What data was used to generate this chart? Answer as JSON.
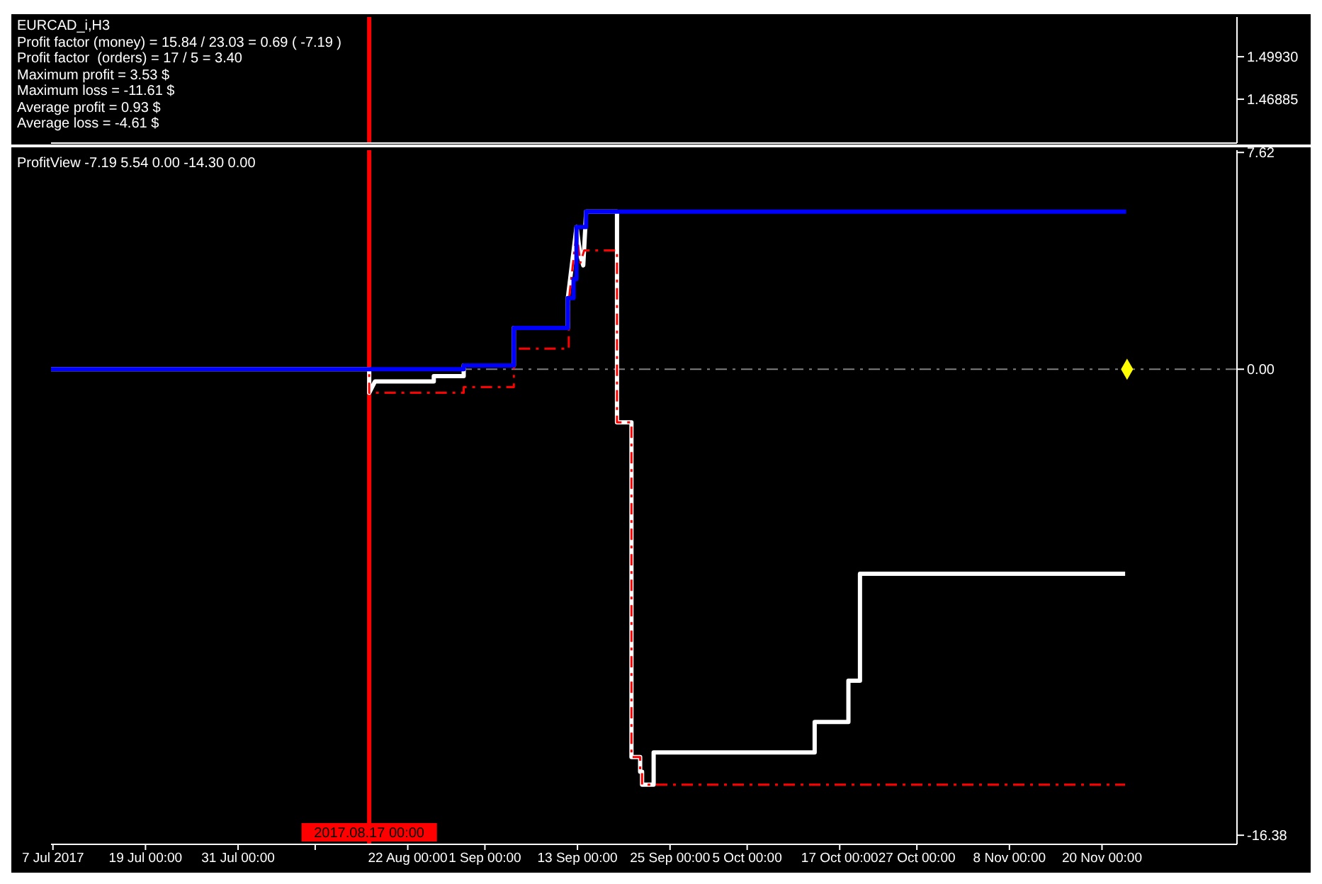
{
  "chart_data": [
    {
      "type": "line",
      "title": "EURCAD_i,H3",
      "annotations": [
        "Profit factor (money) = 15.84 / 23.03 = 0.69 ( -7.19 )",
        "Profit factor  (orders) = 17 / 5 = 3.40",
        "Maximum profit = 3.53 $",
        "Maximum loss = -11.61 $",
        "Average profit = 0.93 $",
        "Average loss = -4.61 $"
      ],
      "xlim": [
        "2017-07-06T18:00",
        "2017-12-07T12:00"
      ],
      "ylim": [
        1.4374,
        1.5278
      ],
      "yticks": [
        {
          "value": 1.4993,
          "label": "1.49930"
        },
        {
          "value": 1.46885,
          "label": "1.46885"
        }
      ],
      "tick_labels": "y",
      "ref_lines": [
        {
          "axis": "x",
          "value": "2017-08-17T00:00",
          "color": "#ff0000"
        }
      ]
    },
    {
      "type": "line",
      "subtitle": "ProfitView -7.19 5.54 0.00 -14.30 0.00",
      "xlim": [
        "2017-07-06T18:00",
        "2017-12-07T12:00"
      ],
      "xticks": [
        {
          "value": "2017-07-07",
          "label": "7 Jul 2017"
        },
        {
          "value": "2017-07-19",
          "label": "19 Jul 00:00"
        },
        {
          "value": "2017-07-31",
          "label": "31 Jul 00:00"
        },
        {
          "value": "2017-08-10",
          "label": null
        },
        {
          "value": "2017-08-22",
          "label": "22 Aug 00:00"
        },
        {
          "value": "2017-09-01",
          "label": "1 Sep 00:00"
        },
        {
          "value": "2017-09-13",
          "label": "13 Sep 00:00"
        },
        {
          "value": "2017-09-25",
          "label": "25 Sep 00:00"
        },
        {
          "value": "2017-10-05",
          "label": "5 Oct 00:00"
        },
        {
          "value": "2017-10-17",
          "label": "17 Oct 00:00"
        },
        {
          "value": "2017-10-27",
          "label": "27 Oct 00:00"
        },
        {
          "value": "2017-11-08",
          "label": "8 Nov 00:00"
        },
        {
          "value": "2017-11-20",
          "label": "20 Nov 00:00"
        }
      ],
      "ylim": [
        -16.7,
        7.7
      ],
      "yticks": [
        {
          "value": 7.62,
          "label": "7.62"
        },
        {
          "value": 0,
          "label": "0.00"
        },
        {
          "value": -16.38,
          "label": "-16.38"
        }
      ],
      "marker": "none",
      "ref_lines": [
        {
          "axis": "y",
          "value": 0,
          "color": "#808080",
          "line_style": "dashed"
        },
        {
          "axis": "x",
          "value": "2017-08-17T00:00",
          "label": "2017.08.17 00:00",
          "color": "#ff0000"
        }
      ],
      "series": [
        {
          "color": "#ffffff",
          "line_style": "solid",
          "x": [
            "2017-07-06T18:00",
            "2017-08-17T00:00",
            "2017-08-17T00:00",
            "2017-08-17T18:00",
            "2017-08-25T09:00",
            "2017-08-25T09:00",
            "2017-08-29T06:00",
            "2017-08-29T06:00",
            "2017-09-04T18:00",
            "2017-09-04T18:00",
            "2017-09-11T18:00",
            "2017-09-11T18:00",
            "2017-09-12T21:00",
            "2017-09-13T09:00",
            "2017-09-13T18:00",
            "2017-09-14T03:00",
            "2017-09-18T03:00",
            "2017-09-18T03:00",
            "2017-09-20T00:00",
            "2017-09-20T00:00",
            "2017-09-21T03:00",
            "2017-09-21T03:00",
            "2017-09-21T09:00",
            "2017-09-21T09:00",
            "2017-09-22T21:00",
            "2017-09-22T21:00",
            "2017-10-13T18:00",
            "2017-10-13T18:00",
            "2017-10-18T03:00",
            "2017-10-18T03:00",
            "2017-10-19T15:00",
            "2017-10-19T15:00",
            "2017-11-23T00:00"
          ],
          "values": [
            0,
            0,
            -0.83,
            -0.43,
            -0.43,
            -0.24,
            -0.24,
            0.13,
            0.13,
            1.45,
            1.45,
            2.5,
            5.0,
            4.0,
            3.65,
            5.54,
            5.54,
            -1.87,
            -1.87,
            -13.63,
            -13.63,
            -14.15,
            -14.15,
            -14.6,
            -14.6,
            -13.47,
            -13.47,
            -12.4,
            -12.4,
            -10.95,
            -10.95,
            -7.19,
            -7.19
          ]
        },
        {
          "color": "#ff0000",
          "line_style": "dashed",
          "x": [
            "2017-07-06T18:00",
            "2017-08-17T00:00",
            "2017-08-17T00:00",
            "2017-08-29T06:00",
            "2017-08-29T06:00",
            "2017-09-04T18:00",
            "2017-09-04T18:00",
            "2017-09-11T21:00",
            "2017-09-11T21:00",
            "2017-09-12T21:00",
            "2017-09-13T09:00",
            "2017-09-13T21:00",
            "2017-09-18T03:00",
            "2017-09-18T03:00",
            "2017-09-20T00:00",
            "2017-09-20T00:00",
            "2017-09-21T03:00",
            "2017-09-21T03:00",
            "2017-09-21T09:00",
            "2017-09-21T09:00",
            "2017-11-23T00:00"
          ],
          "values": [
            0,
            0,
            -0.83,
            -0.83,
            -0.63,
            -0.63,
            0.72,
            0.72,
            2.4,
            4.8,
            3.74,
            4.18,
            4.18,
            -1.87,
            -1.87,
            -13.63,
            -13.63,
            -14.15,
            -14.15,
            -14.6,
            -14.6
          ]
        },
        {
          "color": "#0000ff",
          "line_style": "solid",
          "x": [
            "2017-07-06T18:00",
            "2017-08-29T06:00",
            "2017-08-29T06:00",
            "2017-09-04T18:00",
            "2017-09-04T18:00",
            "2017-09-11T18:00",
            "2017-09-11T18:00",
            "2017-09-12T12:00",
            "2017-09-12T12:00",
            "2017-09-12T21:00",
            "2017-09-12T21:00",
            "2017-09-14T03:00",
            "2017-09-14T03:00",
            "2017-11-23T03:00"
          ],
          "values": [
            0,
            0,
            0.13,
            0.13,
            1.45,
            1.45,
            2.5,
            2.5,
            3.17,
            3.17,
            5.0,
            5.0,
            5.54,
            5.54
          ]
        },
        {
          "type": "scatter",
          "marker": "diamond",
          "color": "#ffff00",
          "x": [
            "2017-11-23T06:00"
          ],
          "values": [
            0
          ]
        }
      ]
    }
  ]
}
